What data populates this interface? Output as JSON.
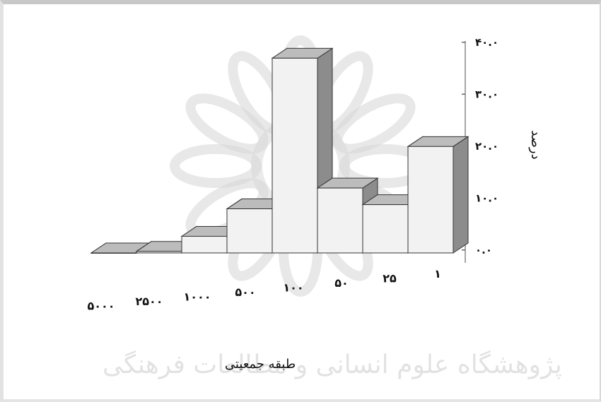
{
  "chart_data": {
    "type": "bar",
    "categories": [
      "۱",
      "۲۵",
      "۵۰",
      "۱۰۰",
      "۵۰۰",
      "۱۰۰۰",
      "۲۵۰۰",
      "۵۰۰۰"
    ],
    "values": [
      20.5,
      9.3,
      12.5,
      37.5,
      8.5,
      3.2,
      0.3,
      0
    ],
    "ylim": [
      0,
      40
    ],
    "yticks": [
      "۰.۰",
      "۱۰.۰",
      "۲۰.۰",
      "۳۰.۰",
      "۴۰.۰"
    ],
    "xlabel": "طبقه جمعیتی",
    "ylabel": "درصد",
    "style": "3d-histogram",
    "bar_color": "#f2f2f2",
    "side_color": "#8c8c8c",
    "top_color": "#bcbcbc",
    "grid": false
  },
  "watermark": {
    "text": "پژوهشگاه علوم انسانی و مطالعات فرهنگی",
    "color": "#d6d6d6"
  }
}
